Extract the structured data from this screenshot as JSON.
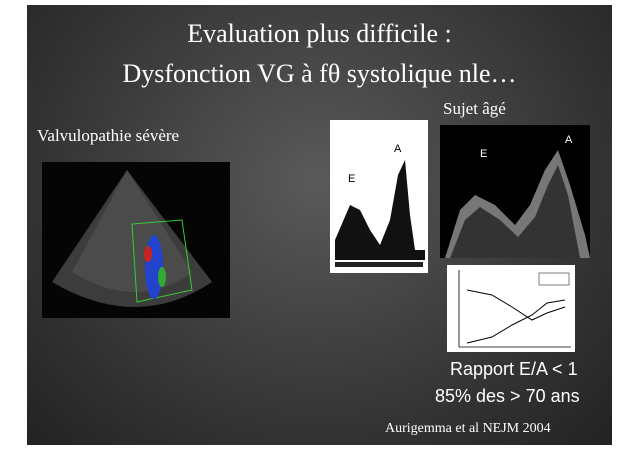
{
  "slide": {
    "title_lines": [
      "Evaluation plus difficile :",
      "Dysfonction VG à fθ systolique nle…"
    ],
    "left_label": "Valvulopathie sévère",
    "right_label": "Sujet âgé",
    "doppler_1": {
      "label_a": "A",
      "label_e": "E"
    },
    "doppler_2": {
      "label_a": "A",
      "label_e": "E"
    },
    "findings": [
      "Rapport E/A < 1",
      "85% des > 70 ans"
    ],
    "reference": "Aurigemma et al NEJM 2004"
  }
}
